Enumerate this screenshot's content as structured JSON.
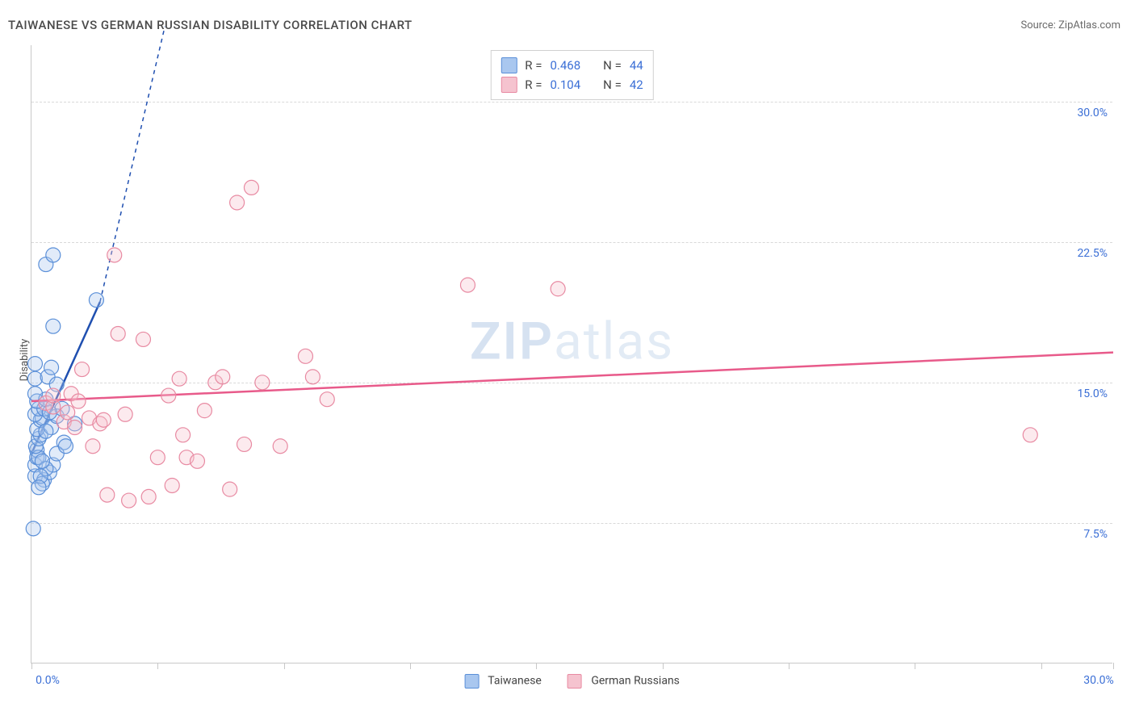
{
  "title": "TAIWANESE VS GERMAN RUSSIAN DISABILITY CORRELATION CHART",
  "source_label": "Source: ZipAtlas.com",
  "ylabel": "Disability",
  "watermark": {
    "part1": "ZIP",
    "part2": "atlas"
  },
  "chart": {
    "type": "scatter",
    "xlim": [
      0,
      30
    ],
    "ylim": [
      0,
      33
    ],
    "y_gridlines": [
      7.5,
      15.0,
      22.5,
      30.0
    ],
    "y_tick_labels": [
      "7.5%",
      "15.0%",
      "22.5%",
      "30.0%"
    ],
    "x_ticks": [
      0,
      3.5,
      7,
      10.5,
      14,
      17.5,
      21,
      24.5,
      28,
      30
    ],
    "x_tick_labels": {
      "0": "0.0%",
      "30": "30.0%"
    },
    "background_color": "#ffffff",
    "grid_style": "dashed",
    "grid_color": "#d9d9d9",
    "axis_color": "#c8c8c8",
    "tick_label_color": "#3b6fd6",
    "marker_radius": 9,
    "marker_stroke_width": 1.2,
    "marker_fill_opacity": 0.35,
    "trend_line_width": 2.5,
    "dashed_extension_dash": "5,5"
  },
  "series": [
    {
      "id": "taiwanese",
      "label": "Taiwanese",
      "fill_color": "#a9c7ef",
      "stroke_color": "#5a8fd8",
      "trend_color": "#1f4fb0",
      "R": "0.468",
      "N": "44",
      "trend": {
        "x1": 0,
        "y1": 11.2,
        "x2": 1.9,
        "y2": 19.3,
        "extend_to_x": 3.7,
        "extend_to_y": 34.0
      },
      "points": [
        [
          0.05,
          7.2
        ],
        [
          0.1,
          10.0
        ],
        [
          0.1,
          10.6
        ],
        [
          0.15,
          11.0
        ],
        [
          0.15,
          11.4
        ],
        [
          0.2,
          11.0
        ],
        [
          0.12,
          11.6
        ],
        [
          0.2,
          12.0
        ],
        [
          0.25,
          12.2
        ],
        [
          0.15,
          12.5
        ],
        [
          0.25,
          13.0
        ],
        [
          0.3,
          13.1
        ],
        [
          0.1,
          13.3
        ],
        [
          0.2,
          13.6
        ],
        [
          0.35,
          13.6
        ],
        [
          0.15,
          14.0
        ],
        [
          0.4,
          14.1
        ],
        [
          0.1,
          14.4
        ],
        [
          0.1,
          15.2
        ],
        [
          0.45,
          15.3
        ],
        [
          0.1,
          16.0
        ],
        [
          0.9,
          11.8
        ],
        [
          1.2,
          12.8
        ],
        [
          0.7,
          14.9
        ],
        [
          0.6,
          18.0
        ],
        [
          1.8,
          19.4
        ],
        [
          0.4,
          21.3
        ],
        [
          0.6,
          21.8
        ],
        [
          0.35,
          9.8
        ],
        [
          0.5,
          10.2
        ],
        [
          0.6,
          10.6
        ],
        [
          0.7,
          11.2
        ],
        [
          0.95,
          11.6
        ],
        [
          0.55,
          12.6
        ],
        [
          0.7,
          13.2
        ],
        [
          0.85,
          13.6
        ],
        [
          0.55,
          15.8
        ],
        [
          0.4,
          10.4
        ],
        [
          0.3,
          10.8
        ],
        [
          0.3,
          9.6
        ],
        [
          0.25,
          10.0
        ],
        [
          0.2,
          9.4
        ],
        [
          0.4,
          12.4
        ],
        [
          0.5,
          13.4
        ]
      ]
    },
    {
      "id": "german_russians",
      "label": "German Russians",
      "fill_color": "#f5c3cf",
      "stroke_color": "#e88aa2",
      "trend_color": "#e85a8a",
      "R": "0.104",
      "N": "42",
      "trend": {
        "x1": 0,
        "y1": 14.0,
        "x2": 30,
        "y2": 16.6
      },
      "points": [
        [
          0.4,
          13.9
        ],
        [
          0.6,
          13.7
        ],
        [
          0.6,
          14.3
        ],
        [
          0.9,
          12.9
        ],
        [
          1.0,
          13.4
        ],
        [
          1.1,
          14.4
        ],
        [
          1.2,
          12.6
        ],
        [
          1.3,
          14.0
        ],
        [
          1.6,
          13.1
        ],
        [
          1.7,
          11.6
        ],
        [
          1.9,
          12.8
        ],
        [
          2.1,
          9.0
        ],
        [
          2.3,
          21.8
        ],
        [
          2.4,
          17.6
        ],
        [
          2.7,
          8.7
        ],
        [
          3.1,
          17.3
        ],
        [
          3.25,
          8.9
        ],
        [
          3.5,
          11.0
        ],
        [
          3.8,
          14.3
        ],
        [
          3.9,
          9.5
        ],
        [
          4.1,
          15.2
        ],
        [
          4.2,
          12.2
        ],
        [
          4.3,
          11.0
        ],
        [
          4.6,
          10.8
        ],
        [
          5.1,
          15.0
        ],
        [
          5.3,
          15.3
        ],
        [
          5.5,
          9.3
        ],
        [
          5.7,
          24.6
        ],
        [
          5.9,
          11.7
        ],
        [
          6.1,
          25.4
        ],
        [
          6.4,
          15.0
        ],
        [
          6.9,
          11.6
        ],
        [
          7.6,
          16.4
        ],
        [
          7.8,
          15.3
        ],
        [
          8.2,
          14.1
        ],
        [
          12.1,
          20.2
        ],
        [
          14.6,
          20.0
        ],
        [
          1.4,
          15.7
        ],
        [
          2.0,
          13.0
        ],
        [
          2.6,
          13.3
        ],
        [
          4.8,
          13.5
        ],
        [
          27.7,
          12.2
        ]
      ]
    }
  ],
  "stat_box": {
    "r_label": "R =",
    "n_label": "N ="
  },
  "bottom_legend_title": ""
}
